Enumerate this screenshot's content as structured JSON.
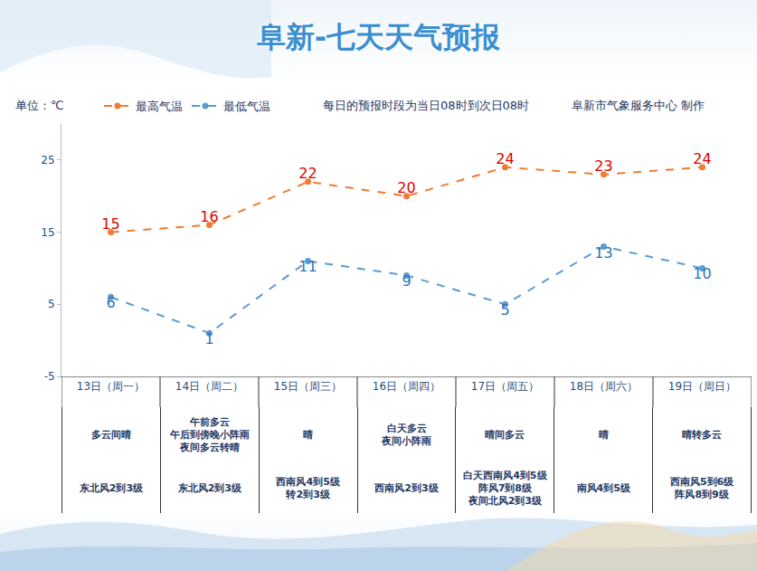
{
  "chart_data": {
    "type": "line",
    "title": "阜新-七天天气预报",
    "ylabel": "单位：℃",
    "annotations": [
      "每日的预报时段为当日08时到次日08时",
      "阜新市气象服务中心 制作"
    ],
    "categories": [
      "13日（周一）",
      "14日（周二）",
      "15日（周三）",
      "16日（周四）",
      "17日（周五）",
      "18日（周六）",
      "19日（周日）"
    ],
    "series": [
      {
        "name": "最高气温",
        "color": "#ed7d31",
        "marker": "circle",
        "line_style": "dash",
        "values": [
          15,
          16,
          22,
          20,
          24,
          23,
          24
        ]
      },
      {
        "name": "最低气温",
        "color": "#5b9bd5",
        "marker": "circle",
        "line_style": "dash",
        "values": [
          6,
          1,
          11,
          9,
          5,
          13,
          10
        ]
      }
    ],
    "ylim": [
      -5,
      30
    ],
    "yticks": [
      -5,
      5,
      15,
      25
    ],
    "data_labels": true,
    "legend": "top",
    "grid": false
  },
  "table": {
    "weather": [
      [
        "多云间晴"
      ],
      [
        "午前多云",
        "午后到傍晚小阵雨",
        "夜间多云转晴"
      ],
      [
        "晴"
      ],
      [
        "白天多云",
        "夜间小阵雨"
      ],
      [
        "晴间多云"
      ],
      [
        "晴"
      ],
      [
        "晴转多云"
      ]
    ],
    "wind": [
      [
        "东北风2到3级"
      ],
      [
        "东北风2到3级"
      ],
      [
        "西南风4到5级",
        "转2到3级"
      ],
      [
        "西南风2到3级"
      ],
      [
        "白天西南风4到5级",
        "阵风7到8级",
        "夜间北风2到3级"
      ],
      [
        "南风4到5级"
      ],
      [
        "西南风5到6级",
        "阵风8到9级"
      ]
    ]
  }
}
